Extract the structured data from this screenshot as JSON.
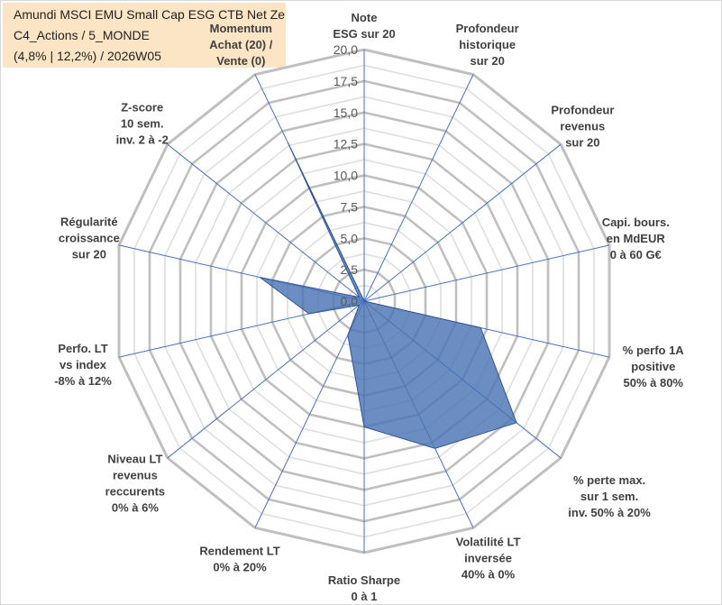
{
  "title": {
    "line1": "Amundi MSCI EMU Small Cap ESG CTB Net Ze",
    "line2": "C4_Actions / 5_MONDE",
    "line3": "(4,8% | 12,2%) / 2026W05"
  },
  "colors": {
    "series_fill": "#4a74b5",
    "series_stroke": "#2f5597",
    "spoke": "#4472c4",
    "grid": "#bfbfbf",
    "title_bg": "#fbe5c5"
  },
  "chart_data": {
    "type": "radar",
    "title": "Amundi MSCI EMU Small Cap ESG CTB Net Ze C4_Actions / 5_MONDE (4,8% | 12,2%) / 2026W05",
    "categories": [
      [
        "Note",
        "ESG sur 20"
      ],
      [
        "Profondeur",
        "historique",
        "sur 20"
      ],
      [
        "Profondeur",
        "revenus",
        "sur 20"
      ],
      [
        "Capi. bours.",
        "en MdEUR",
        "0 à 60 G€"
      ],
      [
        "% perfo 1A",
        "positive",
        "50% à 80%"
      ],
      [
        "% perte max.",
        "sur 1 sem.",
        "inv. 50% à 20%"
      ],
      [
        "Volatilité LT",
        "inversée",
        "40% à 0%"
      ],
      [
        "Ratio Sharpe",
        "0 à 1"
      ],
      [
        "Rendement LT",
        "0% à 20%"
      ],
      [
        "Niveau LT",
        "revenus",
        "reccurents",
        "0% à 6%"
      ],
      [
        "Perfo. LT",
        "vs index",
        "-8% à 12%"
      ],
      [
        "Régularité",
        "croissance",
        "sur 20"
      ],
      [
        "Z-score",
        "10 sem.",
        "inv. 2 à -2"
      ],
      [
        "Momentum",
        "Achat (20) /",
        "Vente (0)"
      ]
    ],
    "values": [
      0,
      0,
      0,
      0,
      9.5,
      15.5,
      13,
      10,
      3,
      0.5,
      4.5,
      8.5,
      0.5,
      14
    ],
    "ylim": [
      0,
      20
    ],
    "ticks": [
      "0,0",
      "2,5",
      "5,0",
      "7,5",
      "10,0",
      "12,5",
      "15,0",
      "17,5",
      "20,0"
    ],
    "grid": true,
    "legend": "none"
  }
}
